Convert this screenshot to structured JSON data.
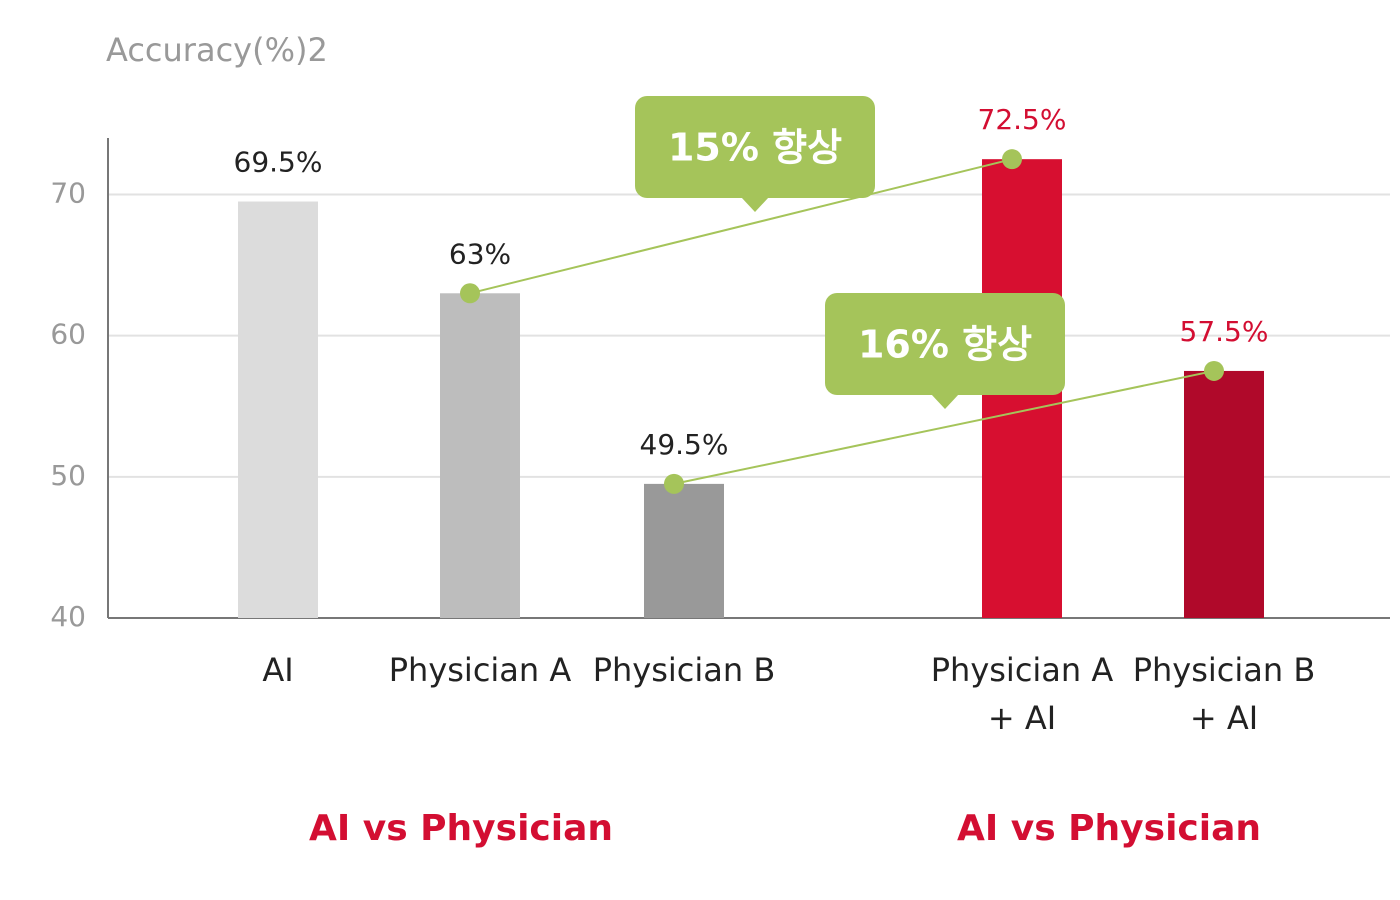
{
  "chart_data": {
    "type": "bar",
    "y_axis_title": "Accuracy(%)2",
    "categories": [
      "AI",
      "Physician A",
      "Physician B",
      "Physician A + AI",
      "Physician B + AI"
    ],
    "values": [
      69.5,
      63,
      49.5,
      72.5,
      57.5
    ],
    "value_labels": [
      "69.5%",
      "63%",
      "49.5%",
      "72.5%",
      "57.5%"
    ],
    "colors": [
      "#dcdcdc",
      "#bdbdbd",
      "#999999",
      "#d70f30",
      "#b0092a"
    ],
    "groups": [
      "AI vs Physician",
      "AI vs Physician"
    ],
    "annotations": [
      "15% 향상",
      "16% 향상"
    ],
    "ylim": [
      40,
      74
    ],
    "yticks": [
      40,
      50,
      60,
      70
    ],
    "grid": true
  }
}
